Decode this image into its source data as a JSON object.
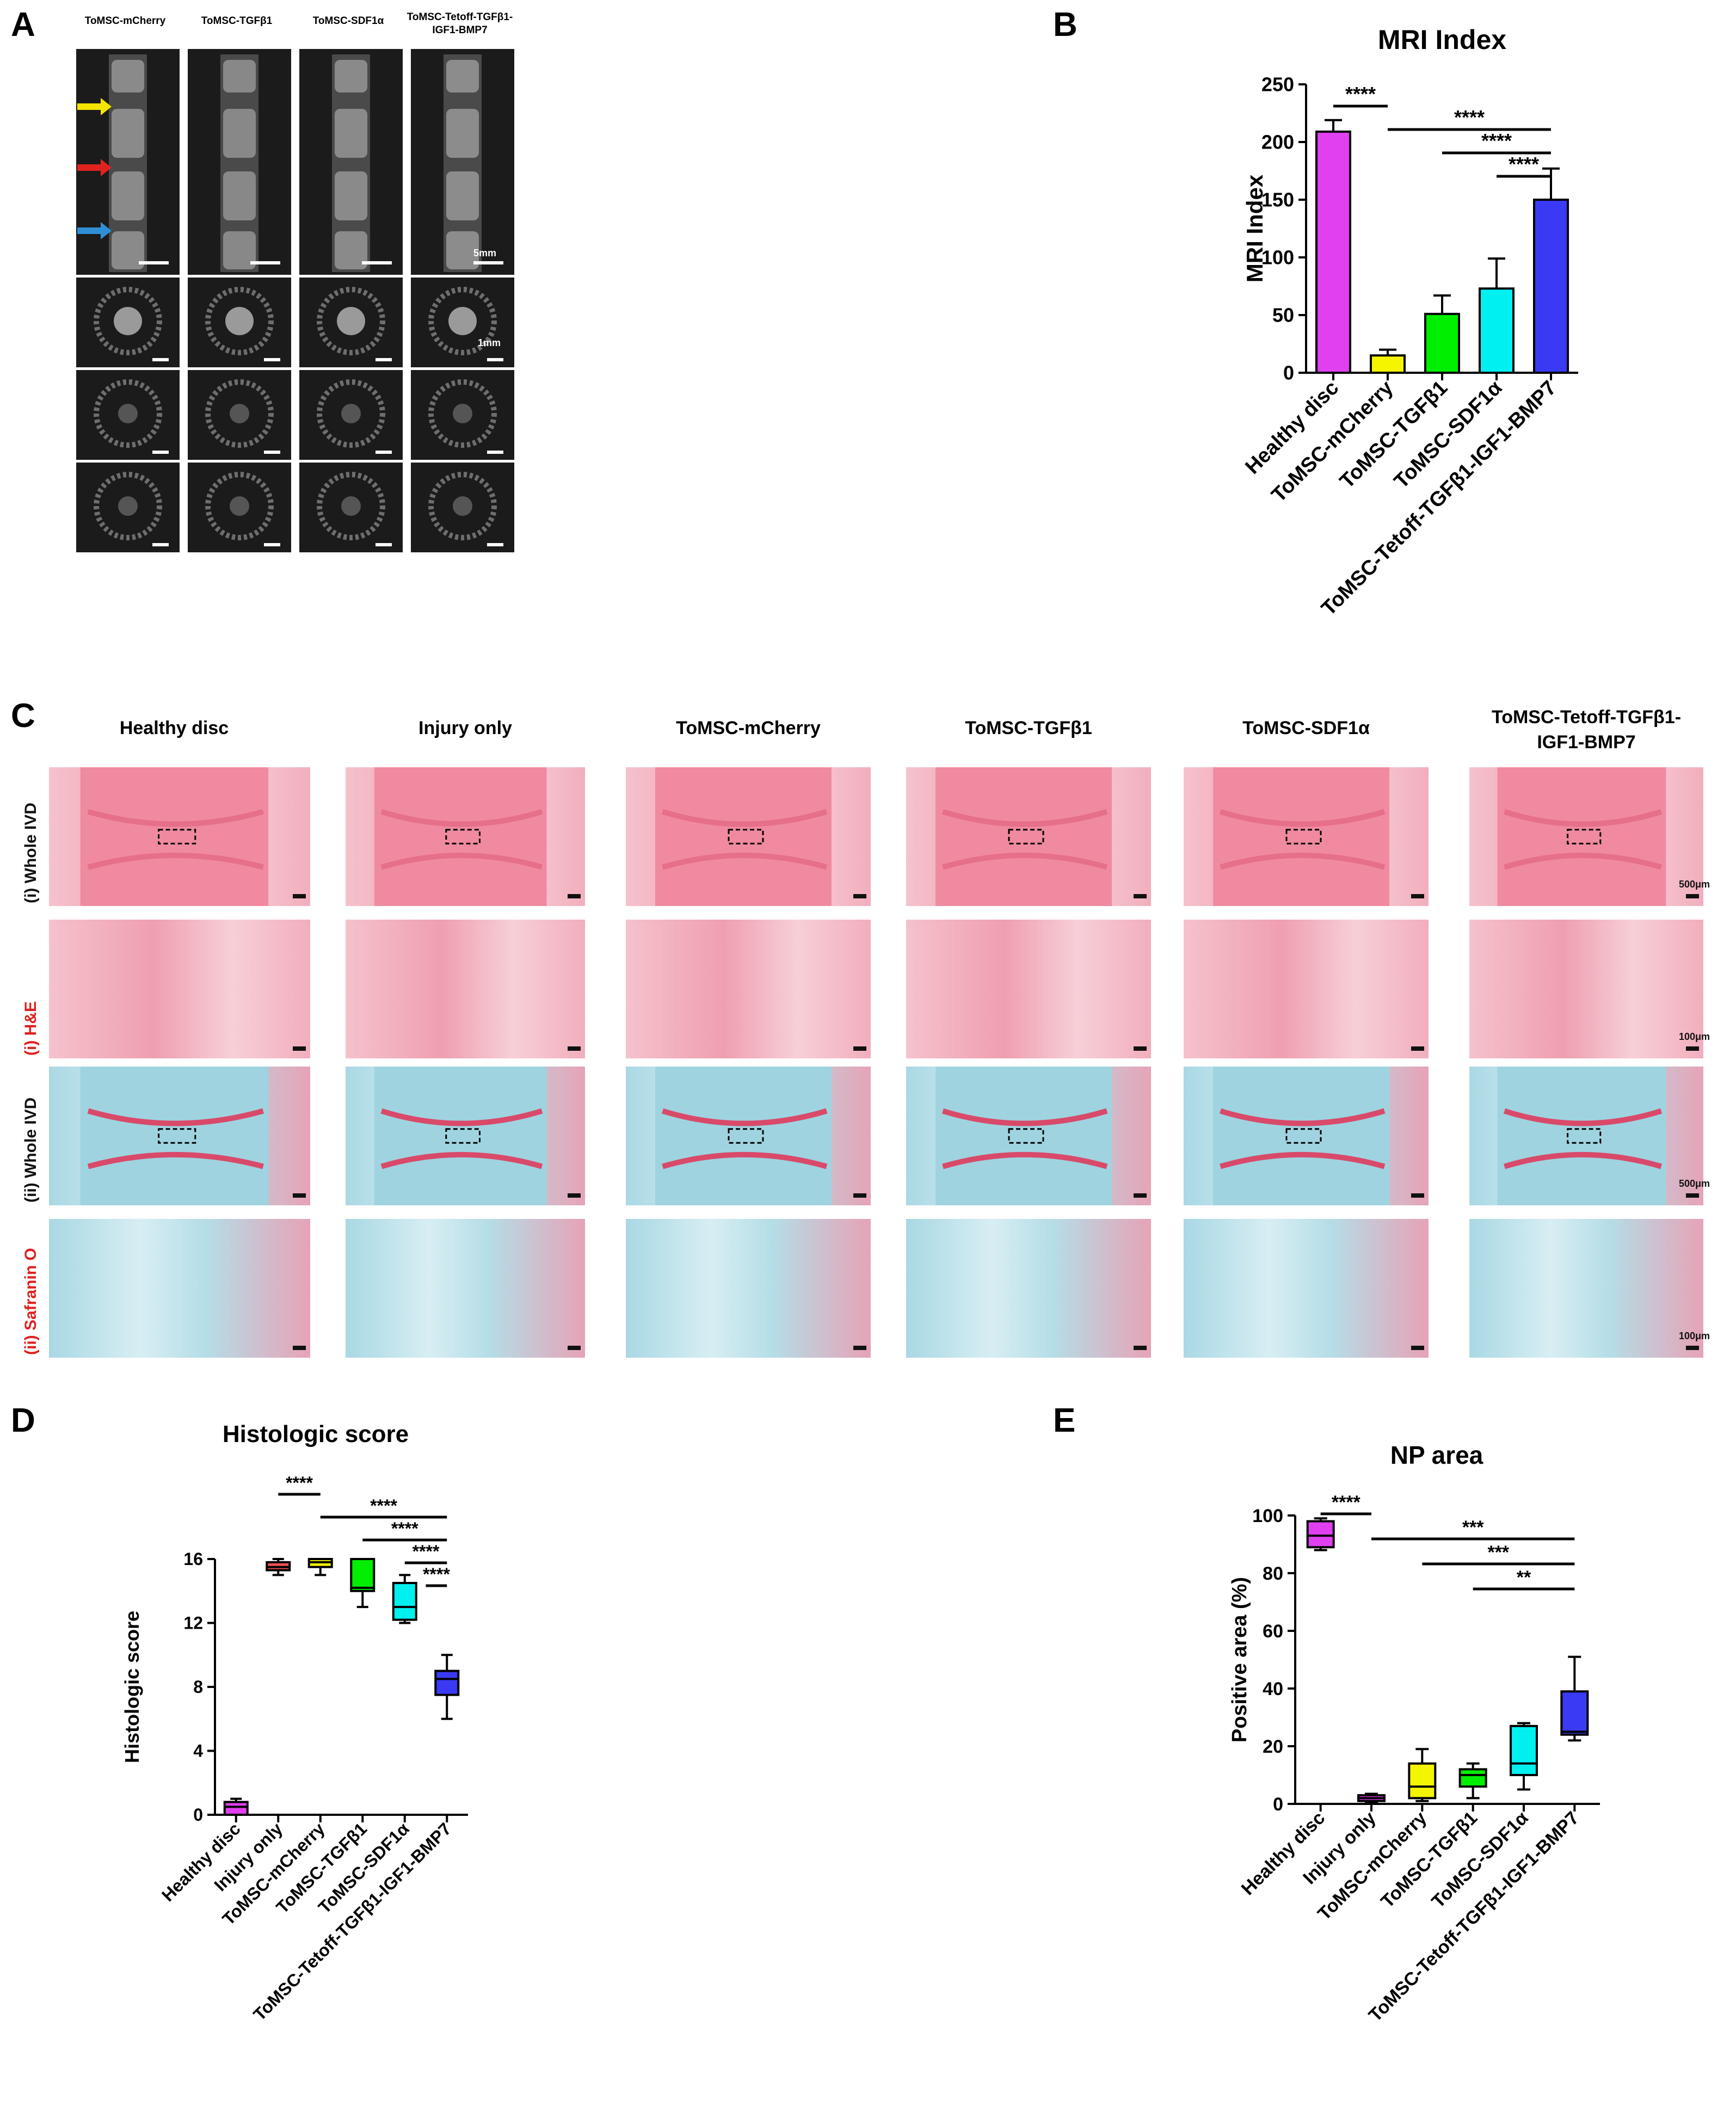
{
  "panels": {
    "A": {
      "letter": "A",
      "columns": [
        "ToMSC-mCherry",
        "ToMSC-TGFβ1",
        "ToMSC-SDF1α",
        "ToMSC-Tetoff-TGFβ1-\nIGF1-BMP7"
      ],
      "scale_labels": [
        "5mm",
        "1mm"
      ],
      "arrow_colors": [
        "#f5e400",
        "#e0221f",
        "#2f8fd6"
      ]
    },
    "B": {
      "letter": "B"
    },
    "C": {
      "letter": "C",
      "columns": [
        "Healthy disc",
        "Injury only",
        "ToMSC-mCherry",
        "ToMSC-TGFβ1",
        "ToMSC-SDF1α",
        "ToMSC-Tetoff-TGFβ1-\nIGF1-BMP7"
      ],
      "rows": [
        "(i) Whole IVD",
        "(i) H&E",
        "(ii) Whole IVD",
        "(ii) Safranin O"
      ],
      "row_colors": [
        "#111111",
        "#e02020",
        "#111111",
        "#e02020"
      ],
      "scale_labels": [
        "500μm",
        "100μm",
        "500μm",
        "100μm"
      ]
    },
    "D": {
      "letter": "D"
    },
    "E": {
      "letter": "E"
    }
  },
  "chart_data": [
    {
      "id": "B",
      "type": "bar",
      "title": "MRI Index",
      "ylabel": "MRI Index",
      "xlabel": "",
      "ylim": [
        0,
        250
      ],
      "yticks": [
        0,
        50,
        100,
        150,
        200,
        250
      ],
      "categories": [
        "Healthy disc",
        "ToMSC-mCherry",
        "ToMSC-TGFβ1",
        "ToMSC-SDF1α",
        "ToMSC-Tetoff-TGFβ1-IGF1-BMP7"
      ],
      "values": [
        209,
        15,
        51,
        73,
        150
      ],
      "errors": [
        10,
        5,
        16,
        26,
        27
      ],
      "colors": [
        "#e040f0",
        "#f5f500",
        "#00ee00",
        "#00f0f0",
        "#3a3af5"
      ],
      "significance": [
        {
          "from": 0,
          "to": 1,
          "label": "****"
        },
        {
          "from": 1,
          "to": 4,
          "label": "****"
        },
        {
          "from": 2,
          "to": 4,
          "label": "****"
        },
        {
          "from": 3,
          "to": 4,
          "label": "****"
        }
      ]
    },
    {
      "id": "D",
      "type": "box",
      "title": "Histologic score",
      "ylabel": "Histologic score",
      "xlabel": "",
      "ylim": [
        0,
        16
      ],
      "yticks": [
        0,
        4,
        8,
        12,
        16
      ],
      "categories": [
        "Healthy disc",
        "Injury only",
        "ToMSC-mCherry",
        "ToMSC-TGFβ1",
        "ToMSC-SDF1α",
        "ToMSC-Tetoff-TGFβ1-IGF1-BMP7"
      ],
      "boxes": [
        {
          "min": 0,
          "q1": 0,
          "median": 0.5,
          "q3": 0.8,
          "max": 1
        },
        {
          "min": 15,
          "q1": 15.3,
          "median": 15.5,
          "q3": 15.8,
          "max": 16
        },
        {
          "min": 15,
          "q1": 15.5,
          "median": 15.8,
          "q3": 16,
          "max": 16
        },
        {
          "min": 13,
          "q1": 14,
          "median": 14.2,
          "q3": 16,
          "max": 16
        },
        {
          "min": 12,
          "q1": 12.2,
          "median": 13,
          "q3": 14.5,
          "max": 15
        },
        {
          "min": 6,
          "q1": 7.5,
          "median": 8.5,
          "q3": 9,
          "max": 10
        }
      ],
      "colors": [
        "#e040f0",
        "#f05050",
        "#f0f000",
        "#00ee00",
        "#00f0f0",
        "#3a3af5"
      ],
      "significance": [
        {
          "from": 1,
          "to": 2,
          "label": "****"
        },
        {
          "from": 2,
          "to": 5,
          "label": "****"
        },
        {
          "from": 3,
          "to": 5,
          "label": "****"
        },
        {
          "from": 4,
          "to": 5,
          "label": "****"
        },
        {
          "from": 4.5,
          "to": 5,
          "label": "****"
        }
      ]
    },
    {
      "id": "E",
      "type": "box",
      "title": "NP area",
      "ylabel": "Positive area (%)",
      "xlabel": "",
      "ylim": [
        0,
        100
      ],
      "yticks": [
        0,
        20,
        40,
        60,
        80,
        100
      ],
      "categories": [
        "Healthy disc",
        "Injury only",
        "ToMSC-mCherry",
        "ToMSC-TGFβ1",
        "ToMSC-SDF1α",
        "ToMSC-Tetoff-TGFβ1-IGF1-BMP7"
      ],
      "boxes": [
        {
          "min": 88,
          "q1": 89,
          "median": 93,
          "q3": 98,
          "max": 99
        },
        {
          "min": 0.5,
          "q1": 1,
          "median": 2,
          "q3": 3,
          "max": 3.5
        },
        {
          "min": 1,
          "q1": 2,
          "median": 6,
          "q3": 14,
          "max": 19
        },
        {
          "min": 2,
          "q1": 6,
          "median": 10,
          "q3": 12,
          "max": 14
        },
        {
          "min": 5,
          "q1": 10,
          "median": 14,
          "q3": 27,
          "max": 28
        },
        {
          "min": 22,
          "q1": 24,
          "median": 25,
          "q3": 39,
          "max": 51
        }
      ],
      "colors": [
        "#e040f0",
        "#e040f0",
        "#f5f500",
        "#00ee00",
        "#00f0f0",
        "#3a3af5"
      ],
      "significance": [
        {
          "from": 0,
          "to": 1,
          "label": "****"
        },
        {
          "from": 1,
          "to": 5,
          "label": "***"
        },
        {
          "from": 2,
          "to": 5,
          "label": "***"
        },
        {
          "from": 3,
          "to": 5,
          "label": "**"
        }
      ]
    }
  ]
}
